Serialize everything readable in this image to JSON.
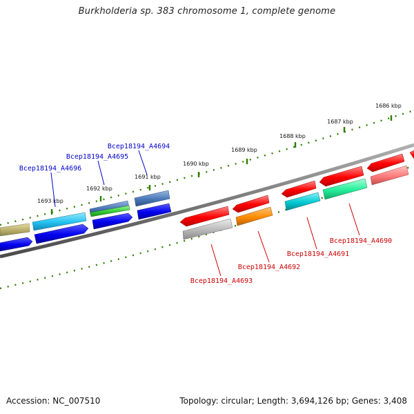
{
  "title": "Burkholderia sp. 383 chromosome 1, complete genome",
  "footer": {
    "accession": "Accession: NC_007510",
    "summary": "Topology: circular; Length: 3,694,126 bp; Genes: 3,408"
  },
  "colors": {
    "backbone": "#7a7a7a",
    "ruler_tick": "#2e7d00",
    "label_forward": "#0000c8",
    "label_reverse": "#cc0000"
  },
  "ruler": {
    "labels": [
      "1686 kbp",
      "1687 kbp",
      "1688 kbp",
      "1689 kbp",
      "1690 kbp",
      "1691 kbp",
      "1692 kbp",
      "1693 kbp"
    ]
  },
  "genes": {
    "labels": [
      {
        "id": "Bcep18194_A4694",
        "strand": "forward"
      },
      {
        "id": "Bcep18194_A4695",
        "strand": "forward"
      },
      {
        "id": "Bcep18194_A4696",
        "strand": "forward"
      },
      {
        "id": "Bcep18194_A4690",
        "strand": "reverse"
      },
      {
        "id": "Bcep18194_A4691",
        "strand": "reverse"
      },
      {
        "id": "Bcep18194_A4692",
        "strand": "reverse"
      },
      {
        "id": "Bcep18194_A4693",
        "strand": "reverse"
      }
    ],
    "feature_colors": [
      "#c7bd74",
      "#0000ee",
      "#2ec4f2",
      "#4a78b8",
      "#32cd32",
      "#ff0000",
      "#b8b8b8",
      "#ff8c00",
      "#00c8d2",
      "#22ee9a",
      "#ff7b7b"
    ]
  }
}
